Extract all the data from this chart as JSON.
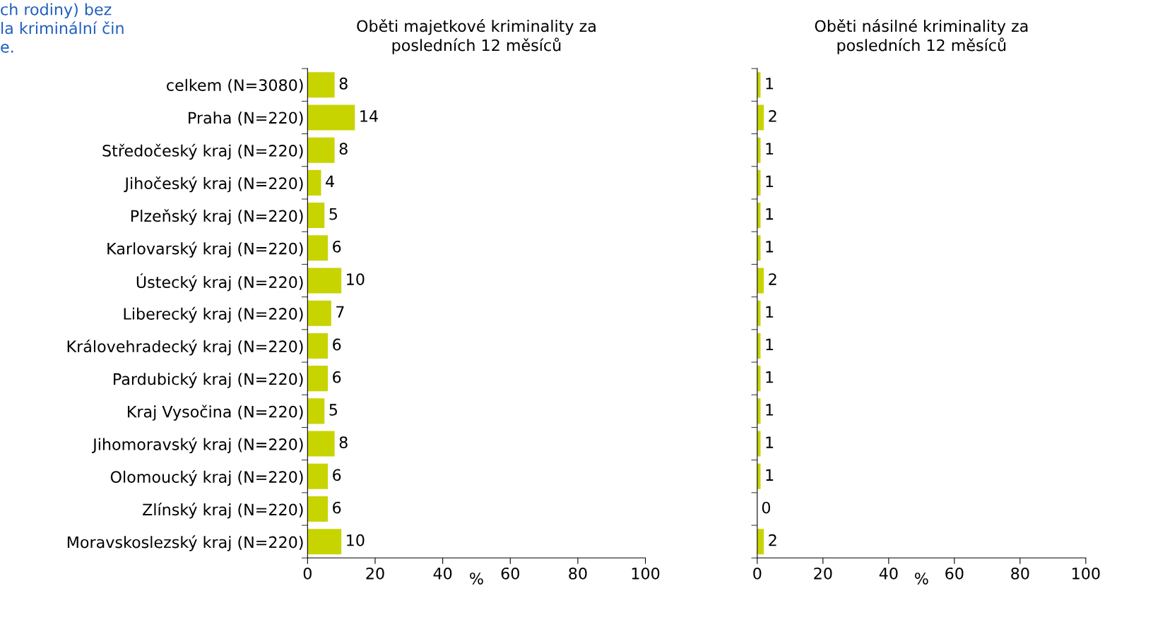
{
  "chart_data": [
    {
      "type": "bar",
      "orientation": "horizontal",
      "title": "Oběti majetkové kriminality za\nposledních 12 měsíců",
      "xlabel": "%",
      "categories": [
        "celkem (N=3080)",
        "Praha (N=220)",
        "Středočeský kraj (N=220)",
        "Jihočeský kraj (N=220)",
        "Plzeňský kraj (N=220)",
        "Karlovarský kraj (N=220)",
        "Ústecký kraj (N=220)",
        "Liberecký kraj (N=220)",
        "Královehradecký kraj (N=220)",
        "Pardubický kraj (N=220)",
        "Kraj Vysočina (N=220)",
        "Jihomoravský kraj (N=220)",
        "Olomoucký kraj (N=220)",
        "Zlínský kraj (N=220)",
        "Moravskoslezský kraj (N=220)"
      ],
      "values": [
        8,
        14,
        8,
        4,
        5,
        6,
        10,
        7,
        6,
        6,
        5,
        8,
        6,
        6,
        10
      ],
      "color": "#c8d400",
      "xlim": [
        0,
        100
      ],
      "xticks": [
        0,
        20,
        40,
        60,
        80,
        100
      ],
      "data_labels": true,
      "grid": false,
      "legend": false,
      "annotations": [
        "ch rodiny) bez\nla kriminální čin\ne."
      ]
    },
    {
      "type": "bar",
      "orientation": "horizontal",
      "title": "Oběti násilné kriminality za\nposledních 12 měsíců",
      "xlabel": "%",
      "categories": [
        null,
        null,
        null,
        null,
        null,
        null,
        null,
        null,
        null,
        null,
        null,
        null,
        null,
        null,
        null
      ],
      "values": [
        1,
        2,
        1,
        1,
        1,
        1,
        2,
        1,
        1,
        1,
        1,
        1,
        1,
        0,
        2
      ],
      "color": "#c8d400",
      "xlim": [
        0,
        100
      ],
      "xticks": [
        0,
        20,
        40,
        60,
        80,
        100
      ],
      "data_labels": true,
      "grid": false,
      "legend": false,
      "tick_labels": "x"
    }
  ]
}
